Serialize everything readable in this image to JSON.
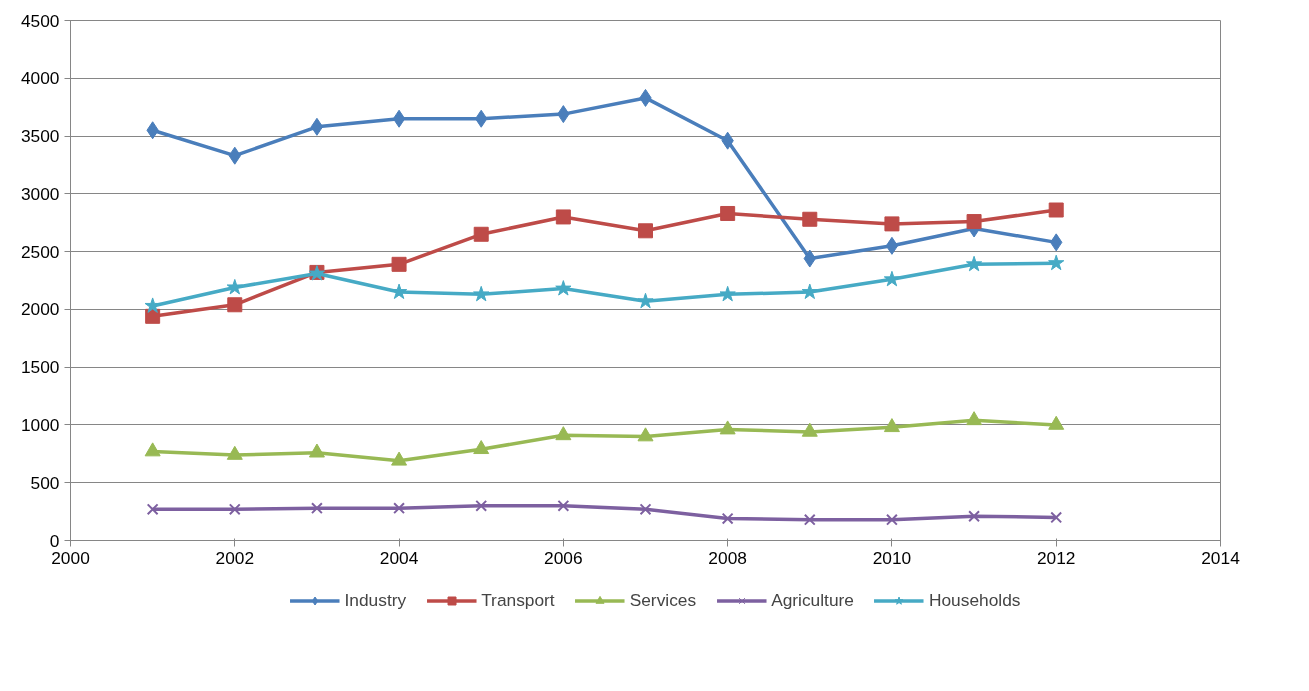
{
  "chart_data": {
    "type": "line",
    "x": [
      2001,
      2002,
      2003,
      2004,
      2005,
      2006,
      2007,
      2008,
      2009,
      2010,
      2011,
      2012
    ],
    "xlim": [
      2000,
      2014
    ],
    "xticks": [
      2000,
      2002,
      2004,
      2006,
      2008,
      2010,
      2012,
      2014
    ],
    "ylim": [
      0,
      4500
    ],
    "yticks": [
      0,
      500,
      1000,
      1500,
      2000,
      2500,
      3000,
      3500,
      4000,
      4500
    ],
    "grid": "y",
    "legend": "bottom",
    "line_style": "solid",
    "series": [
      {
        "name": "Industry",
        "color": "#4a7ebb",
        "marker": "diamond",
        "values": [
          3550,
          3330,
          3580,
          3650,
          3650,
          3690,
          3830,
          3460,
          2440,
          2550,
          2700,
          2580
        ]
      },
      {
        "name": "Transport",
        "color": "#be4b48",
        "marker": "square",
        "values": [
          1940,
          2040,
          2320,
          2390,
          2650,
          2800,
          2680,
          2830,
          2780,
          2740,
          2760,
          2860
        ]
      },
      {
        "name": "Services",
        "color": "#98b954",
        "marker": "triangle",
        "values": [
          770,
          740,
          760,
          690,
          790,
          910,
          900,
          960,
          940,
          980,
          1040,
          1000
        ]
      },
      {
        "name": "Agriculture",
        "color": "#7d60a0",
        "marker": "cross",
        "values": [
          270,
          270,
          280,
          280,
          300,
          300,
          270,
          190,
          180,
          180,
          210,
          200
        ]
      },
      {
        "name": "Households",
        "color": "#46aac5",
        "marker": "star",
        "values": [
          2030,
          2190,
          2310,
          2150,
          2130,
          2180,
          2070,
          2130,
          2150,
          2260,
          2390,
          2400
        ]
      }
    ]
  }
}
